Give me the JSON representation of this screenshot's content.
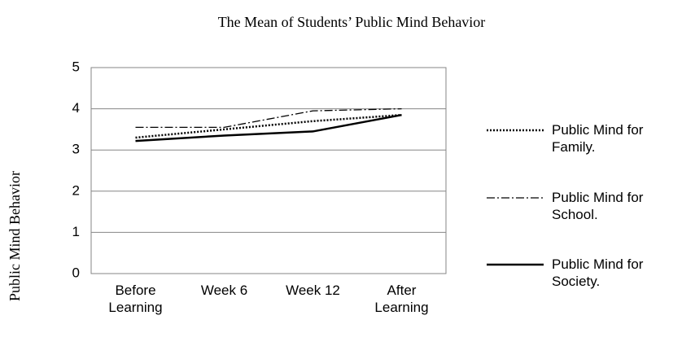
{
  "chart_data": {
    "type": "line",
    "title": "The Mean of Students’ Public Mind Behavior",
    "y_label": "Public Mind Behavior",
    "categories": [
      "Before Learning",
      "Week 6",
      "Week 12",
      "After Learning"
    ],
    "series": [
      {
        "name": "Public Mind for Family.",
        "color": "#000000",
        "line_style": "dotted",
        "values": [
          3.3,
          3.5,
          3.7,
          3.85
        ]
      },
      {
        "name": "Public Mind for School.",
        "color": "#000000",
        "line_style": "dashdot",
        "values": [
          3.55,
          3.55,
          3.95,
          4.0
        ]
      },
      {
        "name": "Public Mind for Society.",
        "color": "#000000",
        "line_style": "solid",
        "values": [
          3.22,
          3.35,
          3.45,
          3.85
        ]
      }
    ],
    "ylim": [
      0,
      5
    ],
    "yticks": [
      0,
      1,
      2,
      3,
      4,
      5
    ],
    "grid": true,
    "legend": "right"
  }
}
